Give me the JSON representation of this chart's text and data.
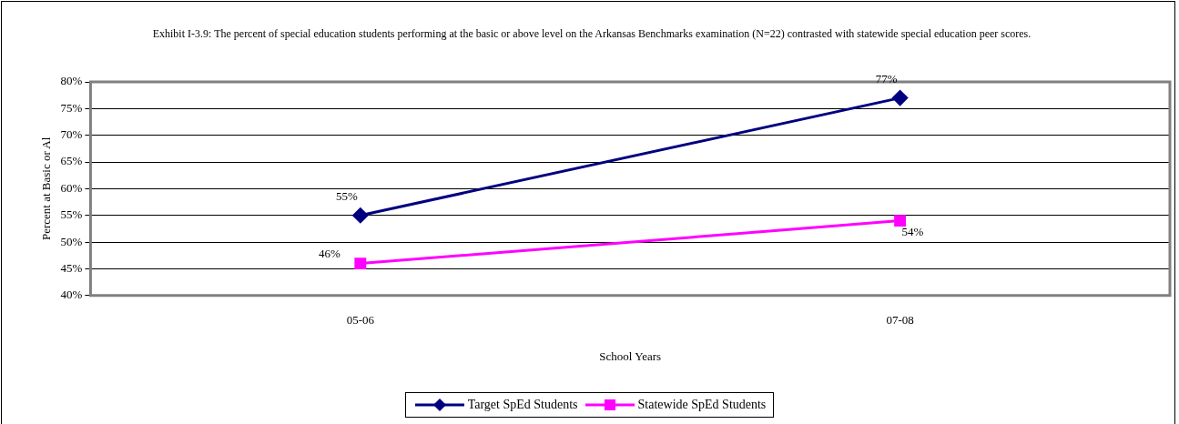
{
  "chart_data": {
    "type": "line",
    "title": "Exhibit I-3.9: The percent of special education students performing at the basic or above level on the Arkansas Benchmarks examination (N=22) contrasted with statewide special education peer scores.",
    "xlabel": "School Years",
    "ylabel": "Percent at Basic or Al",
    "categories": [
      "05-06",
      "07-08"
    ],
    "series": [
      {
        "name": "Target SpEd Students",
        "color": "#000080",
        "marker": "diamond",
        "values": [
          55,
          77
        ],
        "value_labels": [
          "55%",
          "77%"
        ]
      },
      {
        "name": "Statewide SpEd Students",
        "color": "#ff00ff",
        "marker": "square",
        "values": [
          46,
          54
        ],
        "value_labels": [
          "46%",
          "54%"
        ]
      }
    ],
    "ylim": [
      40,
      80
    ],
    "yticks": [
      {
        "value": 40,
        "label": "40%"
      },
      {
        "value": 45,
        "label": "45%"
      },
      {
        "value": 50,
        "label": "50%"
      },
      {
        "value": 55,
        "label": "55%"
      },
      {
        "value": 60,
        "label": "60%"
      },
      {
        "value": 65,
        "label": "65%"
      },
      {
        "value": 70,
        "label": "70%"
      },
      {
        "value": 75,
        "label": "75%"
      },
      {
        "value": 80,
        "label": "80%"
      }
    ],
    "grid": "y",
    "legend": "bottom",
    "line_style": "solid"
  }
}
